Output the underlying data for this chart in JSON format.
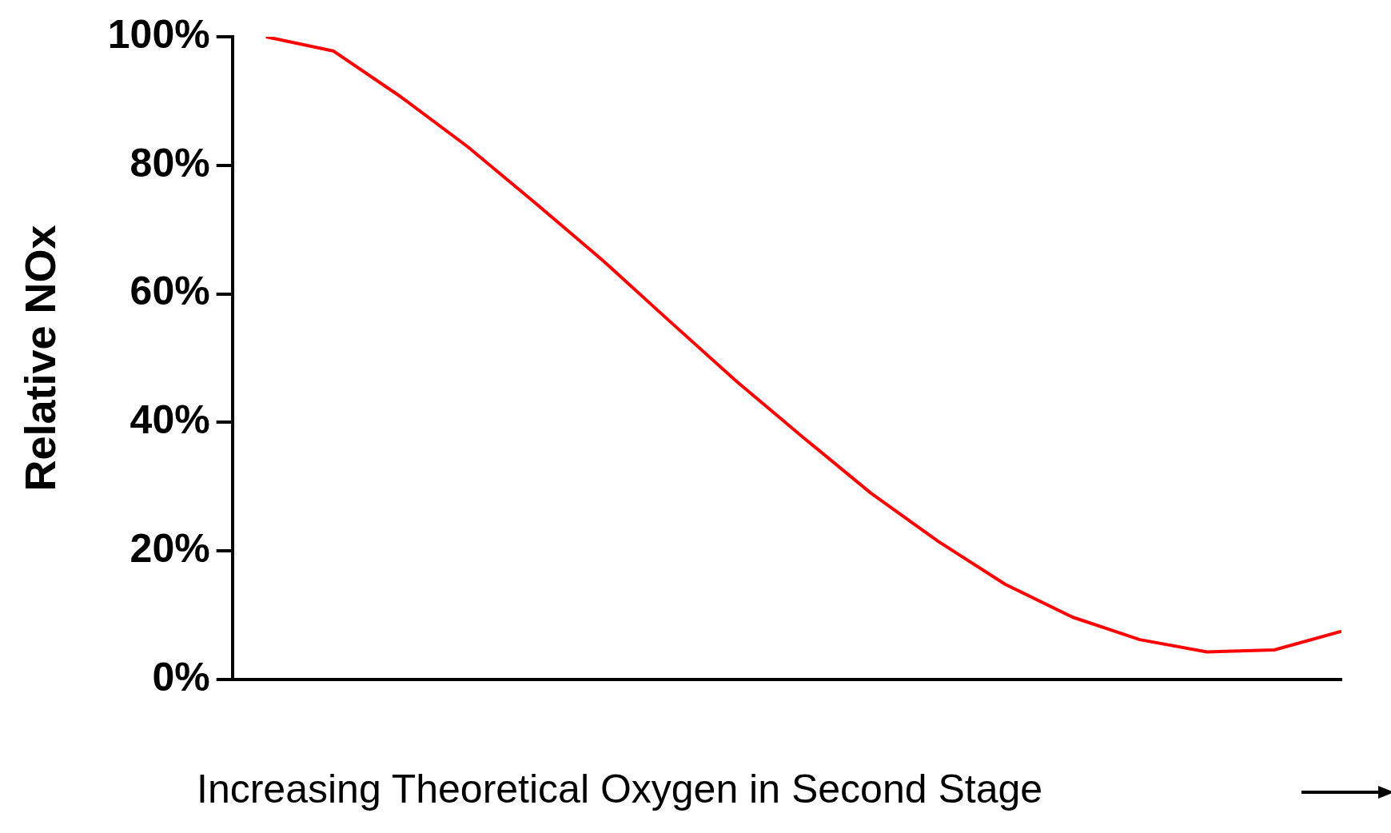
{
  "chart_data": {
    "type": "line",
    "xlabel": "Increasing Theoretical Oxygen in Second Stage",
    "ylabel": "Relative NOx",
    "categories": [
      null,
      null,
      null,
      null,
      null,
      null,
      null,
      null,
      null,
      null,
      null,
      null,
      null,
      null,
      null,
      null,
      null
    ],
    "series": [
      {
        "color": "#ff0000",
        "values": [
          100,
          97.8,
          90.7,
          82.9,
          74.2,
          65.3,
          55.8,
          46.4,
          37.6,
          29.0,
          21.5,
          14.8,
          9.7,
          6.2,
          4.3,
          4.6,
          7.5
        ]
      }
    ],
    "ylim": [
      0,
      100
    ],
    "yticks": [
      {
        "value": 0,
        "label": "0%"
      },
      {
        "value": 20,
        "label": "20%"
      },
      {
        "value": 40,
        "label": "40%"
      },
      {
        "value": 60,
        "label": "60%"
      },
      {
        "value": 80,
        "label": "80%"
      },
      {
        "value": 100,
        "label": "100%"
      }
    ],
    "tick_labels": "y",
    "marker": "none",
    "line_style": "solid"
  }
}
